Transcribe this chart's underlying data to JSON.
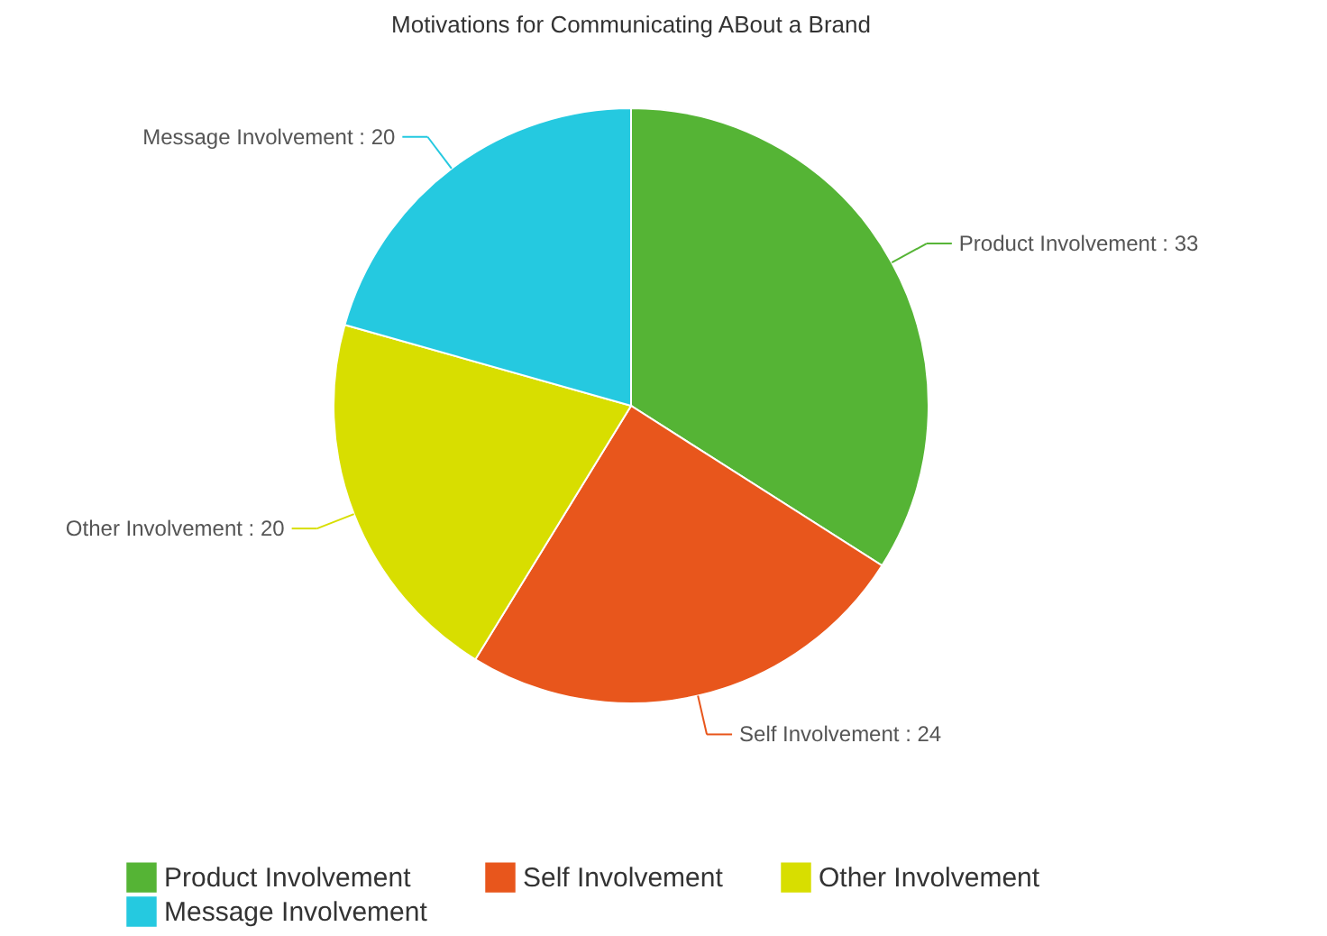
{
  "chart_data": {
    "type": "pie",
    "title": "Motivations for Communicating ABout a Brand",
    "categories": [
      "Product Involvement",
      "Self Involvement",
      "Other Involvement",
      "Message Involvement"
    ],
    "values": [
      33,
      24,
      20,
      20
    ],
    "value_labels": [
      ": 33",
      ": 24",
      ": 20",
      ": 20"
    ],
    "colors": [
      "#55b435",
      "#e8561c",
      "#d8de00",
      "#25c9e0"
    ],
    "legend": "bottom"
  }
}
